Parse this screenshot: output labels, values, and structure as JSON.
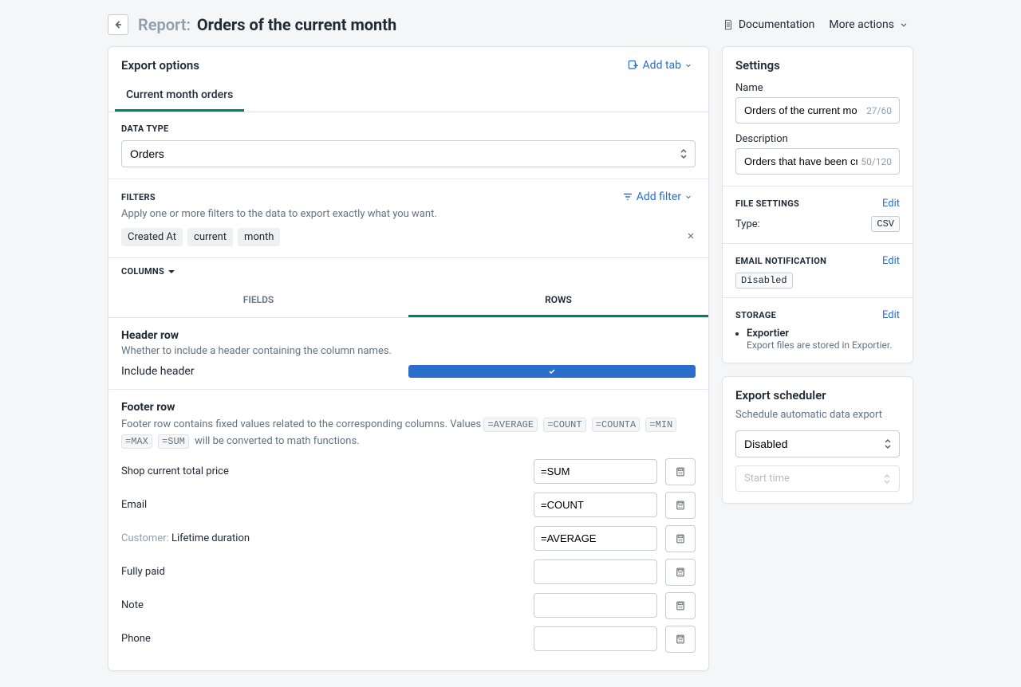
{
  "colors": {
    "accent_green": "#008060",
    "accent_blue": "#2c6ecb",
    "bg": "#f4f6f8",
    "border": "#c4cdd5",
    "chip_bg": "#eef0f2",
    "muted": "#637381",
    "light_text": "#919eab"
  },
  "header": {
    "label": "Report:",
    "title": "Orders of the current month",
    "doc": "Documentation",
    "more": "More actions"
  },
  "export": {
    "title": "Export options",
    "add_tab": "Add tab",
    "tab": "Current month orders"
  },
  "data_type": {
    "label": "DATA TYPE",
    "value": "Orders"
  },
  "filters": {
    "label": "FILTERS",
    "add": "Add filter",
    "help": "Apply one or more filters to the data to export exactly what you want.",
    "chips": [
      "Created At",
      "current",
      "month"
    ]
  },
  "columns": {
    "label": "COLUMNS",
    "tabs": {
      "fields": "FIELDS",
      "rows": "ROWS"
    }
  },
  "header_row": {
    "title": "Header row",
    "desc": "Whether to include a header containing the column names.",
    "include": "Include header",
    "checked": true
  },
  "footer_row": {
    "title": "Footer row",
    "desc_pre": "Footer row contains fixed values related to the corresponding columns. Values ",
    "codes": [
      "=AVERAGE",
      "=COUNT",
      "=COUNTA",
      "=MIN",
      "=MAX",
      "=SUM"
    ],
    "desc_post": " will be converted to math functions.",
    "rows": [
      {
        "prefix": "",
        "label": "Shop current total price",
        "value": "=SUM"
      },
      {
        "prefix": "",
        "label": "Email",
        "value": "=COUNT"
      },
      {
        "prefix": "Customer: ",
        "label": "Lifetime duration",
        "value": "=AVERAGE"
      },
      {
        "prefix": "",
        "label": "Fully paid",
        "value": ""
      },
      {
        "prefix": "",
        "label": "Note",
        "value": ""
      },
      {
        "prefix": "",
        "label": "Phone",
        "value": ""
      }
    ]
  },
  "settings": {
    "title": "Settings",
    "name_label": "Name",
    "name_value": "Orders of the current month",
    "name_counter": "27/60",
    "desc_label": "Description",
    "desc_value": "Orders that have been create",
    "desc_counter": "50/120",
    "file": {
      "label": "FILE SETTINGS",
      "edit": "Edit",
      "type_k": "Type:",
      "type_v": "CSV"
    },
    "email": {
      "label": "EMAIL NOTIFICATION",
      "edit": "Edit",
      "value": "Disabled"
    },
    "storage": {
      "label": "STORAGE",
      "edit": "Edit",
      "item_title": "Exportier",
      "item_desc": "Export files are stored in Exportier."
    }
  },
  "scheduler": {
    "title": "Export scheduler",
    "desc": "Schedule automatic data export",
    "value": "Disabled",
    "placeholder": "Start time"
  }
}
